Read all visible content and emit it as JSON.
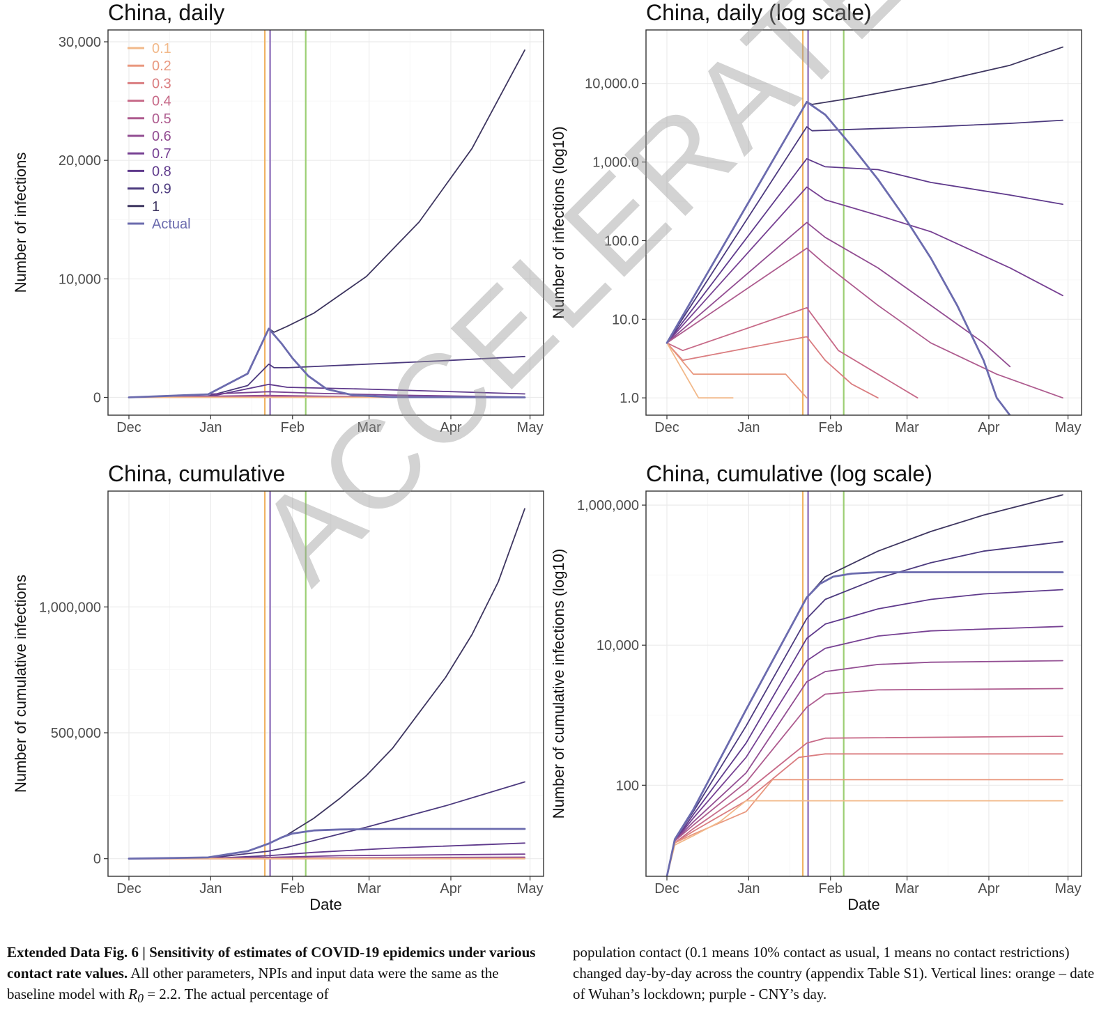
{
  "chart_data": [
    {
      "type": "line",
      "title": "China, daily",
      "xlabel": "",
      "ylabel": "Number of infections",
      "x_ticks": [
        "Dec",
        "Jan",
        "Feb",
        "Mar",
        "Apr",
        "May"
      ],
      "y_ticks": [
        "0",
        "10,000",
        "20,000",
        "30,000"
      ],
      "ylim": [
        -1500,
        31000
      ],
      "yscale": "linear",
      "legend_position": "top-left",
      "legend": [
        "0.1",
        "0.2",
        "0.3",
        "0.4",
        "0.5",
        "0.6",
        "0.7",
        "0.8",
        "0.9",
        "1",
        "Actual"
      ],
      "vlines_day": [
        51.5,
        53.5,
        67
      ],
      "series_note": "days since Dec 1 (0 = Dec 1, 150 = Apr 29)",
      "series": [
        {
          "name": "1",
          "x": [
            0,
            30,
            45,
            53,
            55,
            60,
            70,
            90,
            110,
            130,
            150
          ],
          "y": [
            0,
            260,
            2000,
            5800,
            5500,
            6000,
            7100,
            10200,
            14800,
            21000,
            29300
          ]
        },
        {
          "name": "0.9",
          "x": [
            0,
            30,
            45,
            53,
            55,
            60,
            90,
            120,
            150
          ],
          "y": [
            0,
            110,
            1000,
            2800,
            2500,
            2500,
            2800,
            3100,
            3450
          ]
        },
        {
          "name": "0.8",
          "x": [
            0,
            30,
            53,
            60,
            90,
            120,
            150
          ],
          "y": [
            0,
            40,
            1100,
            850,
            700,
            500,
            290
          ]
        },
        {
          "name": "0.7",
          "x": [
            0,
            53,
            70,
            100,
            150
          ],
          "y": [
            0,
            480,
            350,
            190,
            20
          ]
        },
        {
          "name": "0.6",
          "x": [
            0,
            53,
            80,
            150
          ],
          "y": [
            0,
            170,
            80,
            1
          ]
        },
        {
          "name": "0.5",
          "x": [
            0,
            53,
            80,
            150
          ],
          "y": [
            0,
            80,
            20,
            0
          ]
        },
        {
          "name": "0.4",
          "x": [
            0,
            53,
            150
          ],
          "y": [
            0,
            14,
            0
          ]
        },
        {
          "name": "0.3",
          "x": [
            0,
            53,
            150
          ],
          "y": [
            0,
            6,
            0
          ]
        },
        {
          "name": "0.2",
          "x": [
            0,
            150
          ],
          "y": [
            0,
            0
          ]
        },
        {
          "name": "0.1",
          "x": [
            0,
            150
          ],
          "y": [
            0,
            0
          ]
        },
        {
          "name": "Actual",
          "x": [
            0,
            30,
            45,
            53,
            58,
            62,
            68,
            75,
            85,
            100,
            150
          ],
          "y": [
            0,
            260,
            2000,
            5800,
            4500,
            3300,
            1800,
            700,
            180,
            25,
            0
          ]
        }
      ]
    },
    {
      "type": "line",
      "title": "China, daily (log scale)",
      "xlabel": "",
      "ylabel": "Number of infections (log10)",
      "x_ticks": [
        "Dec",
        "Jan",
        "Feb",
        "Mar",
        "Apr",
        "May"
      ],
      "y_ticks": [
        "1.0",
        "10.0",
        "100.0",
        "1,000.0",
        "10,000.0"
      ],
      "ylim_log10": [
        -0.22,
        4.68
      ],
      "yscale": "log10",
      "vlines_day": [
        51.5,
        53.5,
        67
      ],
      "series": [
        {
          "name": "1",
          "x": [
            0,
            53,
            55,
            70,
            100,
            130,
            150
          ],
          "y": [
            5,
            5800,
            5400,
            6500,
            10000,
            17000,
            29000
          ]
        },
        {
          "name": "0.9",
          "x": [
            0,
            53,
            55,
            70,
            100,
            130,
            150
          ],
          "y": [
            5,
            2800,
            2500,
            2600,
            2800,
            3100,
            3400
          ]
        },
        {
          "name": "0.8",
          "x": [
            0,
            53,
            60,
            80,
            100,
            130,
            150
          ],
          "y": [
            5,
            1100,
            870,
            800,
            550,
            380,
            290
          ]
        },
        {
          "name": "0.7",
          "x": [
            0,
            53,
            60,
            80,
            100,
            130,
            150
          ],
          "y": [
            5,
            480,
            330,
            210,
            130,
            45,
            20
          ]
        },
        {
          "name": "0.6",
          "x": [
            0,
            53,
            60,
            80,
            100,
            120,
            130
          ],
          "y": [
            5,
            170,
            110,
            45,
            15,
            5,
            2.5
          ]
        },
        {
          "name": "0.5",
          "x": [
            0,
            53,
            60,
            80,
            100,
            125,
            150
          ],
          "y": [
            5,
            80,
            50,
            15,
            5,
            2,
            1
          ]
        },
        {
          "name": "0.4",
          "x": [
            0,
            6,
            53,
            65,
            80,
            95
          ],
          "y": [
            5,
            4,
            14,
            4,
            2,
            1
          ]
        },
        {
          "name": "0.3",
          "x": [
            0,
            6,
            53,
            60,
            70,
            80
          ],
          "y": [
            5,
            3,
            6,
            3,
            1.5,
            1
          ]
        },
        {
          "name": "0.2",
          "x": [
            0,
            10,
            45,
            53
          ],
          "y": [
            5,
            2,
            2,
            1
          ]
        },
        {
          "name": "0.1",
          "x": [
            0,
            12,
            25
          ],
          "y": [
            5,
            1,
            1
          ]
        },
        {
          "name": "Actual",
          "x": [
            0,
            53,
            60,
            70,
            80,
            90,
            100,
            110,
            120,
            125,
            130
          ],
          "y": [
            5,
            5800,
            4000,
            1600,
            600,
            200,
            60,
            15,
            3,
            1,
            0.6
          ]
        }
      ]
    },
    {
      "type": "line",
      "title": "China, cumulative",
      "xlabel": "Date",
      "ylabel": "Number of cumulative infections",
      "x_ticks": [
        "Dec",
        "Jan",
        "Feb",
        "Mar",
        "Apr",
        "May"
      ],
      "y_ticks": [
        "0",
        "500,000",
        "1,000,000"
      ],
      "ylim": [
        -70000,
        1460000
      ],
      "yscale": "linear",
      "vlines_day": [
        51.5,
        53.5,
        67
      ],
      "series": [
        {
          "name": "1",
          "x": [
            0,
            30,
            45,
            53,
            60,
            70,
            80,
            90,
            100,
            110,
            120,
            130,
            140,
            150
          ],
          "y": [
            0,
            5000,
            30000,
            60000,
            95000,
            160000,
            240000,
            330000,
            440000,
            580000,
            720000,
            890000,
            1100000,
            1390000
          ]
        },
        {
          "name": "0.9",
          "x": [
            0,
            30,
            53,
            60,
            90,
            120,
            150
          ],
          "y": [
            0,
            2000,
            30000,
            45000,
            125000,
            210000,
            305000
          ]
        },
        {
          "name": "0.8",
          "x": [
            0,
            30,
            53,
            70,
            100,
            150
          ],
          "y": [
            0,
            800,
            12000,
            25000,
            42000,
            62000
          ]
        },
        {
          "name": "0.7",
          "x": [
            0,
            53,
            80,
            150
          ],
          "y": [
            0,
            5000,
            12000,
            18000
          ]
        },
        {
          "name": "0.6",
          "x": [
            0,
            53,
            150
          ],
          "y": [
            0,
            2500,
            6000
          ]
        },
        {
          "name": "0.5",
          "x": [
            0,
            53,
            150
          ],
          "y": [
            0,
            1200,
            2200
          ]
        },
        {
          "name": "0.4",
          "x": [
            0,
            150
          ],
          "y": [
            0,
            400
          ]
        },
        {
          "name": "0.3",
          "x": [
            0,
            150
          ],
          "y": [
            0,
            250
          ]
        },
        {
          "name": "0.2",
          "x": [
            0,
            150
          ],
          "y": [
            0,
            100
          ]
        },
        {
          "name": "0.1",
          "x": [
            0,
            150
          ],
          "y": [
            0,
            50
          ]
        },
        {
          "name": "Actual",
          "x": [
            0,
            30,
            45,
            53,
            58,
            62,
            70,
            80,
            100,
            150
          ],
          "y": [
            0,
            5000,
            30000,
            60000,
            85000,
            100000,
            112000,
            116000,
            118000,
            118000
          ]
        }
      ]
    },
    {
      "type": "line",
      "title": "China, cumulative (log scale)",
      "xlabel": "Date",
      "ylabel": "Number of cumulative infections (log10)",
      "x_ticks": [
        "Dec",
        "Jan",
        "Feb",
        "Mar",
        "Apr",
        "May"
      ],
      "y_ticks": [
        "100",
        "10,000",
        "1,000,000"
      ],
      "ylim_log10": [
        0.7,
        6.2
      ],
      "yscale": "log10",
      "vlines_day": [
        51.5,
        53.5,
        67
      ],
      "series": [
        {
          "name": "1",
          "x": [
            0,
            3,
            10,
            30,
            53,
            60,
            80,
            100,
            120,
            150
          ],
          "y": [
            5,
            17,
            45,
            1200,
            48000,
            95000,
            220000,
            420000,
            720000,
            1400000
          ]
        },
        {
          "name": "0.9",
          "x": [
            0,
            3,
            10,
            30,
            53,
            60,
            80,
            100,
            120,
            150
          ],
          "y": [
            5,
            17,
            42,
            700,
            24000,
            45000,
            90000,
            150000,
            220000,
            300000
          ]
        },
        {
          "name": "0.8",
          "x": [
            0,
            3,
            10,
            30,
            53,
            60,
            80,
            100,
            120,
            150
          ],
          "y": [
            5,
            16,
            38,
            400,
            12500,
            20000,
            33000,
            45000,
            54000,
            62000
          ]
        },
        {
          "name": "0.7",
          "x": [
            0,
            3,
            10,
            30,
            53,
            60,
            80,
            100,
            150
          ],
          "y": [
            5,
            16,
            34,
            250,
            6000,
            9000,
            13500,
            16000,
            18500
          ]
        },
        {
          "name": "0.6",
          "x": [
            0,
            3,
            10,
            30,
            53,
            60,
            80,
            100,
            150
          ],
          "y": [
            5,
            16,
            30,
            150,
            3000,
            4200,
            5300,
            5700,
            6000
          ]
        },
        {
          "name": "0.5",
          "x": [
            0,
            3,
            10,
            30,
            53,
            60,
            80,
            150
          ],
          "y": [
            5,
            16,
            27,
            110,
            1300,
            2000,
            2300,
            2400
          ]
        },
        {
          "name": "0.4",
          "x": [
            0,
            3,
            10,
            30,
            53,
            60,
            150
          ],
          "y": [
            5,
            15,
            24,
            80,
            400,
            470,
            500
          ]
        },
        {
          "name": "0.3",
          "x": [
            0,
            3,
            10,
            30,
            50,
            60,
            150
          ],
          "y": [
            5,
            15,
            22,
            60,
            250,
            280,
            280
          ]
        },
        {
          "name": "0.2",
          "x": [
            0,
            3,
            10,
            30,
            40,
            150
          ],
          "y": [
            5,
            15,
            20,
            42,
            120,
            120
          ]
        },
        {
          "name": "0.1",
          "x": [
            0,
            3,
            10,
            20,
            30,
            150
          ],
          "y": [
            5,
            14,
            19,
            30,
            60,
            60
          ]
        },
        {
          "name": "Actual",
          "x": [
            0,
            3,
            10,
            30,
            53,
            58,
            63,
            70,
            80,
            150
          ],
          "y": [
            5,
            17,
            45,
            1200,
            48000,
            75000,
            95000,
            105000,
            110000,
            110000
          ]
        }
      ]
    }
  ],
  "colors": {
    "series": {
      "0.1": "#f2b98a",
      "0.2": "#e9987f",
      "0.3": "#da7d80",
      "0.4": "#c76a88",
      "0.5": "#ae5c8f",
      "0.6": "#924d92",
      "0.7": "#774193",
      "0.8": "#5f3a8c",
      "0.9": "#4c3a7e",
      "1": "#3e3660",
      "Actual": "#6b6bae"
    },
    "vline_orange": "#f0b464",
    "vline_purple": "#8a6ab8",
    "vline_green": "#9ccf73",
    "grid": "#ebebeb",
    "axis_text": "#4d4d4d"
  },
  "caption": {
    "figure_label": "Extended Data Fig. 6 | Sensitivity of estimates of COVID-19 epidemics under various contact rate values.",
    "left_text": " All other parameters, NPIs and input data were the same as the baseline model with ",
    "r0_symbol": "R",
    "r0_subscript": "0",
    "r0_value": " = 2.2. The actual percentage of",
    "right_text": "population contact (0.1 means 10% contact as usual, 1 means no contact restrictions) changed day-by-day across the country (appendix Table S1). Vertical lines: orange – date of Wuhan’s lockdown; purple - CNY’s day."
  },
  "watermark": "ACCELERATED ARTICLE PREVIEW"
}
